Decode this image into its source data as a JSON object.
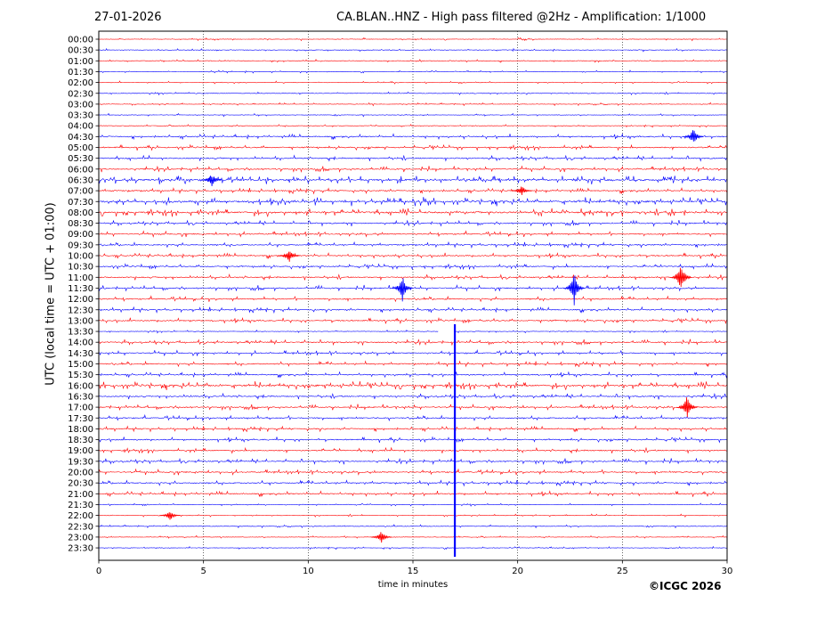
{
  "header": {
    "date": "27-01-2026",
    "title": "CA.BLAN..HNZ - High pass filtered @2Hz - Amplification: 1/1000"
  },
  "footer": {
    "copyright": "©ICGC 2026"
  },
  "chart_data": {
    "type": "line",
    "title": "CA.BLAN..HNZ - High pass filtered @2Hz - Amplification: 1/1000",
    "xlabel": "time in minutes",
    "ylabel": "UTC (local time = UTC + 01:00)",
    "xlim": [
      0,
      30
    ],
    "x_ticks": [
      0,
      5,
      10,
      15,
      20,
      25,
      30
    ],
    "grid": "vertical dotted at 5-minute intervals",
    "row_colors": [
      "#ff0000",
      "#0000ff"
    ],
    "rows": [
      "00:00",
      "00:30",
      "01:00",
      "01:30",
      "02:00",
      "02:30",
      "03:00",
      "03:30",
      "04:00",
      "04:30",
      "05:00",
      "05:30",
      "06:00",
      "06:30",
      "07:00",
      "07:30",
      "08:00",
      "08:30",
      "09:00",
      "09:30",
      "10:00",
      "10:30",
      "11:00",
      "11:30",
      "12:00",
      "12:30",
      "13:00",
      "13:30",
      "14:00",
      "14:30",
      "15:00",
      "15:30",
      "16:00",
      "16:30",
      "17:00",
      "17:30",
      "18:00",
      "18:30",
      "19:00",
      "19:30",
      "20:00",
      "20:30",
      "21:00",
      "21:30",
      "22:00",
      "22:30",
      "23:00",
      "23:30"
    ],
    "noise_level": [
      1,
      1,
      1,
      1,
      1,
      1,
      1,
      1,
      1,
      2,
      2,
      2,
      2,
      3,
      2,
      3,
      3,
      2,
      2,
      2,
      2,
      2,
      2,
      2,
      2,
      2,
      2,
      1,
      2,
      2,
      2,
      2,
      3,
      2,
      2,
      2,
      2,
      2,
      2,
      2,
      2,
      2,
      2,
      1,
      1,
      1,
      1,
      1
    ],
    "events": [
      {
        "row": "13:30",
        "minute": 17.0,
        "amplitude": 8,
        "note": "large vertical spike continuing to end of day"
      },
      {
        "row": "11:00",
        "minute": 27.8,
        "amplitude": 2
      },
      {
        "row": "11:30",
        "minute": 22.7,
        "amplitude": 2
      },
      {
        "row": "11:30",
        "minute": 14.5,
        "amplitude": 1.5
      },
      {
        "row": "17:00",
        "minute": 28.1,
        "amplitude": 1.5
      },
      {
        "row": "04:30",
        "minute": 28.4,
        "amplitude": 1
      },
      {
        "row": "06:30",
        "minute": 5.4,
        "amplitude": 0.8
      },
      {
        "row": "10:00",
        "minute": 9.1,
        "amplitude": 0.8
      },
      {
        "row": "23:00",
        "minute": 13.5,
        "amplitude": 0.8
      },
      {
        "row": "22:00",
        "minute": 3.4,
        "amplitude": 0.6
      },
      {
        "row": "07:00",
        "minute": 20.2,
        "amplitude": 0.6
      }
    ]
  }
}
